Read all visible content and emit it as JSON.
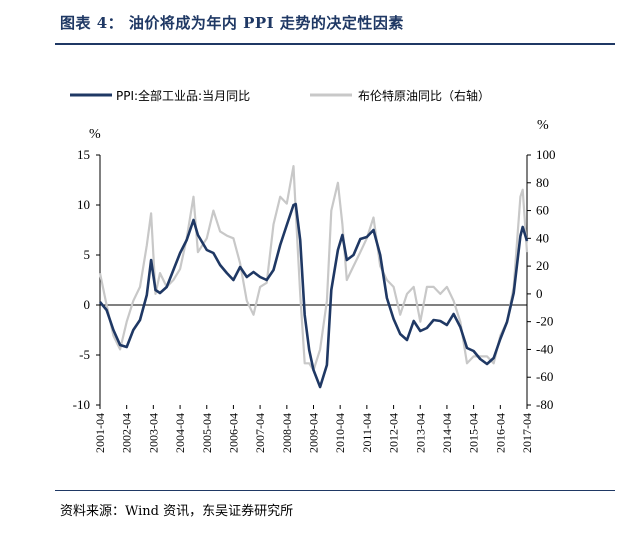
{
  "header": {
    "title": "图表 4： 油价将成为年内 PPI 走势的决定性因素"
  },
  "footer": {
    "source": "资料来源：Wind 资讯，东吴证券研究所"
  },
  "chart_data": {
    "type": "line",
    "left_unit": "%",
    "right_unit": "%",
    "y_left": {
      "ticks": [
        -10,
        -5,
        0,
        5,
        10,
        15
      ],
      "range": [
        -10,
        15
      ]
    },
    "y_right": {
      "ticks": [
        -80,
        -60,
        -40,
        -20,
        0,
        20,
        40,
        60,
        80,
        100
      ],
      "range": [
        -80,
        100
      ]
    },
    "x_ticks": [
      "2001-04",
      "2002-04",
      "2003-04",
      "2004-04",
      "2005-04",
      "2006-04",
      "2007-04",
      "2008-04",
      "2009-04",
      "2010-04",
      "2011-04",
      "2012-04",
      "2013-04",
      "2014-04",
      "2015-04",
      "2016-04",
      "2017-04"
    ],
    "series": [
      {
        "name": "PPI:全部工业品:当月同比",
        "axis": "left",
        "color": "#1f3864",
        "points": [
          [
            "2001-04",
            0.3
          ],
          [
            "2001-07",
            -0.5
          ],
          [
            "2001-10",
            -2.5
          ],
          [
            "2002-01",
            -4.0
          ],
          [
            "2002-04",
            -4.2
          ],
          [
            "2002-07",
            -2.5
          ],
          [
            "2002-10",
            -1.5
          ],
          [
            "2003-01",
            1.0
          ],
          [
            "2003-03",
            4.5
          ],
          [
            "2003-05",
            1.5
          ],
          [
            "2003-07",
            1.2
          ],
          [
            "2003-10",
            1.8
          ],
          [
            "2004-01",
            3.5
          ],
          [
            "2004-04",
            5.2
          ],
          [
            "2004-07",
            6.5
          ],
          [
            "2004-10",
            8.5
          ],
          [
            "2004-12",
            7.0
          ],
          [
            "2005-04",
            5.5
          ],
          [
            "2005-07",
            5.2
          ],
          [
            "2005-10",
            4.0
          ],
          [
            "2006-01",
            3.2
          ],
          [
            "2006-04",
            2.5
          ],
          [
            "2006-07",
            3.8
          ],
          [
            "2006-10",
            2.8
          ],
          [
            "2007-01",
            3.3
          ],
          [
            "2007-04",
            2.8
          ],
          [
            "2007-07",
            2.5
          ],
          [
            "2007-10",
            3.5
          ],
          [
            "2008-01",
            6.0
          ],
          [
            "2008-04",
            8.0
          ],
          [
            "2008-07",
            10.0
          ],
          [
            "2008-08",
            10.1
          ],
          [
            "2008-10",
            6.5
          ],
          [
            "2008-12",
            -1.0
          ],
          [
            "2009-02",
            -4.5
          ],
          [
            "2009-04",
            -6.5
          ],
          [
            "2009-07",
            -8.2
          ],
          [
            "2009-10",
            -6.0
          ],
          [
            "2009-12",
            1.5
          ],
          [
            "2010-03",
            5.5
          ],
          [
            "2010-05",
            7.0
          ],
          [
            "2010-07",
            4.5
          ],
          [
            "2010-10",
            5.0
          ],
          [
            "2011-01",
            6.6
          ],
          [
            "2011-04",
            6.8
          ],
          [
            "2011-07",
            7.5
          ],
          [
            "2011-10",
            5.0
          ],
          [
            "2012-01",
            0.7
          ],
          [
            "2012-04",
            -1.4
          ],
          [
            "2012-07",
            -2.9
          ],
          [
            "2012-10",
            -3.5
          ],
          [
            "2013-01",
            -1.6
          ],
          [
            "2013-04",
            -2.6
          ],
          [
            "2013-07",
            -2.3
          ],
          [
            "2013-10",
            -1.5
          ],
          [
            "2014-01",
            -1.6
          ],
          [
            "2014-04",
            -2.0
          ],
          [
            "2014-07",
            -0.9
          ],
          [
            "2014-10",
            -2.2
          ],
          [
            "2015-01",
            -4.3
          ],
          [
            "2015-04",
            -4.6
          ],
          [
            "2015-07",
            -5.4
          ],
          [
            "2015-10",
            -5.9
          ],
          [
            "2016-01",
            -5.3
          ],
          [
            "2016-04",
            -3.4
          ],
          [
            "2016-07",
            -1.7
          ],
          [
            "2016-10",
            1.2
          ],
          [
            "2017-01",
            6.9
          ],
          [
            "2017-02",
            7.8
          ],
          [
            "2017-04",
            6.4
          ]
        ]
      },
      {
        "name": "布伦特原油同比（右轴）",
        "axis": "right",
        "color": "#c8c8c8",
        "points": [
          [
            "2001-04",
            15
          ],
          [
            "2001-07",
            -8
          ],
          [
            "2001-10",
            -30
          ],
          [
            "2002-01",
            -40
          ],
          [
            "2002-04",
            -20
          ],
          [
            "2002-07",
            -5
          ],
          [
            "2002-10",
            5
          ],
          [
            "2003-01",
            35
          ],
          [
            "2003-03",
            58
          ],
          [
            "2003-05",
            0
          ],
          [
            "2003-07",
            15
          ],
          [
            "2003-10",
            5
          ],
          [
            "2004-01",
            10
          ],
          [
            "2004-04",
            18
          ],
          [
            "2004-07",
            40
          ],
          [
            "2004-10",
            70
          ],
          [
            "2004-12",
            30
          ],
          [
            "2005-04",
            40
          ],
          [
            "2005-07",
            60
          ],
          [
            "2005-10",
            45
          ],
          [
            "2006-01",
            42
          ],
          [
            "2006-04",
            40
          ],
          [
            "2006-07",
            22
          ],
          [
            "2006-10",
            -5
          ],
          [
            "2007-01",
            -15
          ],
          [
            "2007-04",
            5
          ],
          [
            "2007-07",
            8
          ],
          [
            "2007-10",
            50
          ],
          [
            "2008-01",
            70
          ],
          [
            "2008-04",
            65
          ],
          [
            "2008-07",
            92
          ],
          [
            "2008-08",
            60
          ],
          [
            "2008-10",
            0
          ],
          [
            "2008-12",
            -50
          ],
          [
            "2009-02",
            -50
          ],
          [
            "2009-04",
            -55
          ],
          [
            "2009-07",
            -40
          ],
          [
            "2009-10",
            -5
          ],
          [
            "2009-12",
            60
          ],
          [
            "2010-03",
            80
          ],
          [
            "2010-05",
            50
          ],
          [
            "2010-07",
            10
          ],
          [
            "2010-10",
            20
          ],
          [
            "2011-01",
            30
          ],
          [
            "2011-04",
            40
          ],
          [
            "2011-07",
            55
          ],
          [
            "2011-10",
            20
          ],
          [
            "2012-01",
            10
          ],
          [
            "2012-04",
            5
          ],
          [
            "2012-07",
            -15
          ],
          [
            "2012-10",
            0
          ],
          [
            "2013-01",
            5
          ],
          [
            "2013-04",
            -20
          ],
          [
            "2013-07",
            5
          ],
          [
            "2013-10",
            5
          ],
          [
            "2014-01",
            0
          ],
          [
            "2014-04",
            5
          ],
          [
            "2014-07",
            -5
          ],
          [
            "2014-10",
            -20
          ],
          [
            "2015-01",
            -50
          ],
          [
            "2015-04",
            -45
          ],
          [
            "2015-07",
            -45
          ],
          [
            "2015-10",
            -45
          ],
          [
            "2016-01",
            -50
          ],
          [
            "2016-04",
            -30
          ],
          [
            "2016-07",
            -20
          ],
          [
            "2016-10",
            5
          ],
          [
            "2017-01",
            70
          ],
          [
            "2017-02",
            75
          ],
          [
            "2017-04",
            30
          ]
        ]
      }
    ]
  }
}
